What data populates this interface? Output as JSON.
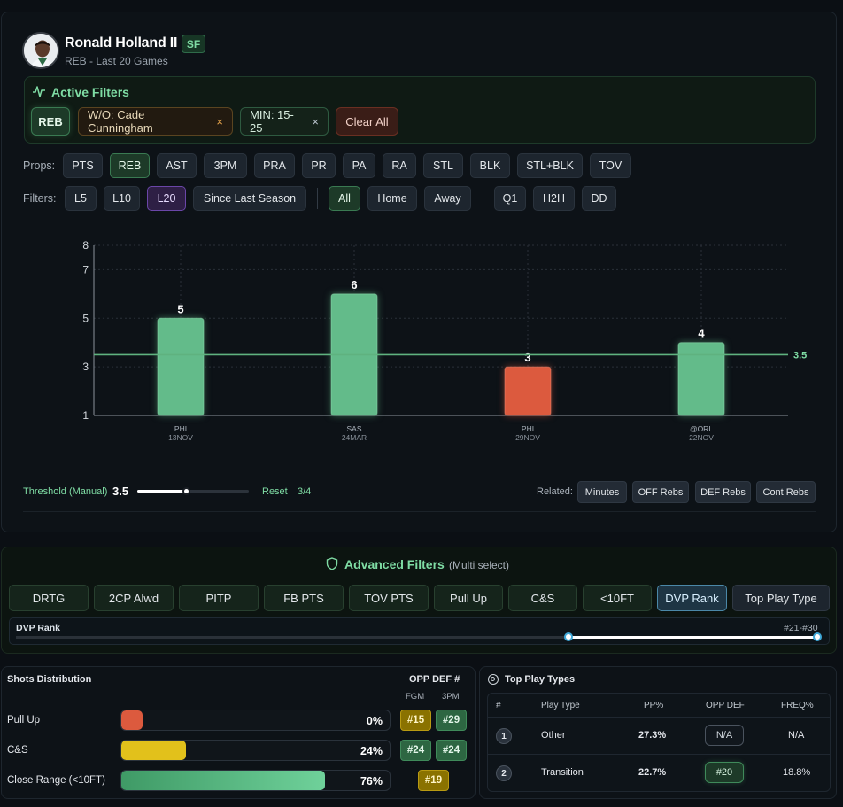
{
  "player": {
    "name": "Ronald Holland II",
    "position": "SF",
    "subtitle": "REB - Last 20 Games"
  },
  "active_filters": {
    "title": "Active Filters",
    "chips": [
      "REB",
      "W/O: Cade Cunningham",
      "MIN: 15-25"
    ],
    "remove_glyph": "×",
    "clear_all": "Clear All"
  },
  "props": {
    "label": "Props:",
    "items": [
      "PTS",
      "REB",
      "AST",
      "3PM",
      "PRA",
      "PR",
      "PA",
      "RA",
      "STL",
      "BLK",
      "STL+BLK",
      "TOV"
    ],
    "selected": "REB"
  },
  "filters": {
    "label": "Filters:",
    "range": [
      "L5",
      "L10",
      "L20",
      "Since Last Season"
    ],
    "range_selected": "L20",
    "location": [
      "All",
      "Home",
      "Away"
    ],
    "location_selected": "All",
    "extra": [
      "Q1",
      "H2H",
      "DD"
    ]
  },
  "chart_data": {
    "type": "bar",
    "categories": [
      "PHI 13NOV",
      "SAS 24MAR",
      "PHI 29NOV",
      "@ORL 22NOV"
    ],
    "teams": [
      "PHI",
      "SAS",
      "PHI",
      "@ORL"
    ],
    "dates": [
      "13NOV",
      "24MAR",
      "29NOV",
      "22NOV"
    ],
    "values": [
      5,
      6,
      3,
      4
    ],
    "threshold": 3.5,
    "threshold_label": "3.5",
    "yticks": [
      1,
      3,
      5,
      7,
      8
    ],
    "ylim": [
      1,
      8
    ],
    "colors": {
      "over": "#63bb8a",
      "under": "#dc5a3e",
      "line": "#5fb27f"
    }
  },
  "threshold": {
    "label": "Threshold (Manual)",
    "value": "3.5",
    "slider_fraction": 0.44,
    "reset": "Reset",
    "count": "3/4"
  },
  "related": {
    "label": "Related:",
    "items": [
      "Minutes",
      "OFF Rebs",
      "DEF Rebs",
      "Cont Rebs"
    ]
  },
  "advanced_filters": {
    "title": "Advanced Filters",
    "subtitle": "(Multi select)",
    "items": [
      "DRTG",
      "2CP Alwd",
      "PITP",
      "FB PTS",
      "TOV PTS",
      "Pull Up",
      "C&S",
      "<10FT",
      "DVP Rank",
      "Top Play Type"
    ],
    "selected": "DVP Rank",
    "dvp": {
      "label": "DVP Rank",
      "range": "#21-#30",
      "start_fraction": 0.69,
      "end_fraction": 1.0
    }
  },
  "shots_distribution": {
    "title": "Shots Distribution",
    "opp_def_header": "OPP DEF #",
    "cols": [
      "FGM",
      "3PM"
    ],
    "rows": [
      {
        "label": "Pull Up",
        "pct": "0%",
        "fraction": 0.08,
        "fgm": "#15",
        "tpm": "#29",
        "color": "#dc5a3e",
        "fgm_class": "gold",
        "tpm_class": "green"
      },
      {
        "label": "C&S",
        "pct": "24%",
        "fraction": 0.24,
        "fgm": "#24",
        "tpm": "#24",
        "color": "#e2c11b",
        "fgm_class": "green",
        "tpm_class": "green"
      },
      {
        "label": "Close Range (<10FT)",
        "pct": "76%",
        "fraction": 0.76,
        "fgm": "#19",
        "tpm": "",
        "color": "#5cc08a",
        "fgm_class": "gold",
        "tpm_class": ""
      }
    ]
  },
  "top_play_types": {
    "title": "Top Play Types",
    "headers": [
      "#",
      "Play Type",
      "PP%",
      "OPP DEF",
      "FREQ%"
    ],
    "rows": [
      {
        "num": "1",
        "type": "Other",
        "pp": "27.3%",
        "opp_def": "N/A",
        "freq": "N/A",
        "badge": "na"
      },
      {
        "num": "2",
        "type": "Transition",
        "pp": "22.7%",
        "opp_def": "#20",
        "freq": "18.8%",
        "badge": "good"
      }
    ]
  }
}
